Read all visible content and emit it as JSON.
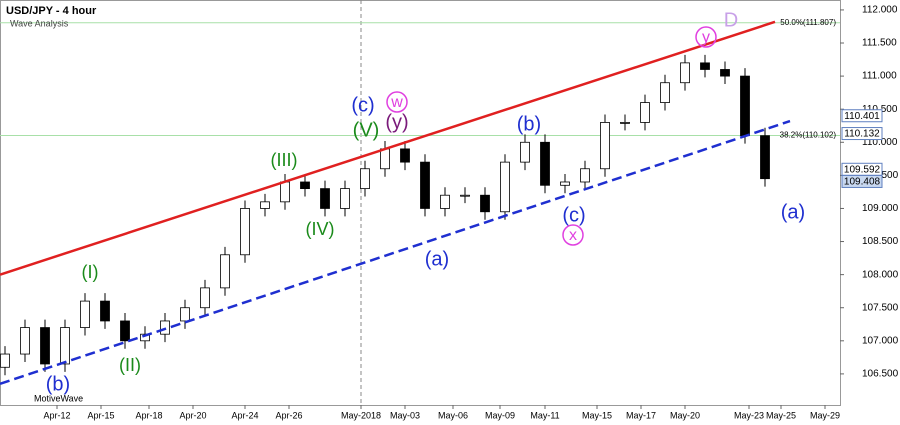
{
  "chart_data": {
    "type": "candlestick",
    "title": "USD/JPY - 4 hour",
    "subtitle": "Wave Analysis",
    "footer": "MotiveWave",
    "up_color": "#ffffff",
    "down_color": "#000000",
    "x": [
      0.5,
      2.5,
      4.5,
      6.5,
      8.5,
      10.5,
      12.5,
      14.5,
      16.5,
      18.5,
      20.5,
      22.5,
      24.5,
      26.5,
      28.5,
      30.5,
      32.5,
      34.5,
      36.5,
      38.5,
      40.5,
      42.5,
      44.5,
      46.5,
      48.5,
      50.5,
      52.5,
      54.5,
      56.5,
      58.5,
      60.5,
      62.5,
      64.5,
      66.5,
      68.5,
      70.5,
      72.5,
      74.5,
      76.5
    ],
    "open": [
      106.6,
      106.8,
      107.2,
      106.65,
      107.2,
      107.6,
      107.3,
      107.0,
      107.1,
      107.3,
      107.5,
      107.8,
      108.3,
      109.0,
      109.1,
      109.4,
      109.3,
      109.0,
      109.3,
      109.6,
      109.9,
      109.7,
      109.0,
      109.2,
      109.2,
      108.95,
      109.7,
      110.0,
      109.35,
      109.4,
      109.6,
      110.3,
      110.3,
      110.6,
      110.9,
      111.2,
      111.1,
      111.0,
      110.1
    ],
    "high": [
      106.92,
      107.32,
      107.32,
      107.32,
      107.72,
      107.72,
      107.42,
      107.22,
      107.42,
      107.62,
      107.92,
      108.42,
      109.12,
      109.22,
      109.52,
      109.52,
      109.42,
      109.42,
      109.72,
      110.02,
      110.02,
      109.82,
      109.32,
      109.32,
      109.32,
      109.82,
      110.12,
      110.12,
      109.52,
      109.72,
      110.42,
      110.42,
      110.72,
      111.02,
      111.32,
      111.32,
      111.22,
      111.12,
      110.22
    ],
    "low": [
      106.48,
      106.68,
      106.53,
      106.53,
      107.08,
      107.18,
      106.88,
      106.88,
      106.98,
      107.18,
      107.38,
      107.68,
      108.18,
      108.88,
      108.98,
      109.18,
      108.88,
      108.88,
      109.18,
      109.48,
      109.58,
      108.88,
      108.88,
      109.08,
      108.83,
      108.83,
      109.58,
      109.23,
      109.23,
      109.28,
      109.48,
      110.18,
      110.18,
      110.48,
      110.78,
      110.98,
      110.88,
      109.98,
      109.33
    ],
    "close": [
      106.8,
      107.2,
      106.65,
      107.2,
      107.6,
      107.3,
      107.0,
      107.1,
      107.3,
      107.5,
      107.8,
      108.3,
      109.0,
      109.1,
      109.4,
      109.3,
      109.0,
      109.3,
      109.6,
      109.9,
      109.7,
      109.0,
      109.2,
      109.2,
      108.95,
      109.7,
      110.0,
      109.35,
      109.4,
      109.6,
      110.3,
      110.3,
      110.6,
      110.9,
      111.2,
      111.1,
      111.0,
      110.1,
      109.45
    ],
    "xlim": [
      0,
      84
    ],
    "xticks": [
      {
        "value": 5.7,
        "label": "Apr-12"
      },
      {
        "value": 10.1,
        "label": "Apr-15"
      },
      {
        "value": 14.9,
        "label": "Apr-18"
      },
      {
        "value": 19.3,
        "label": "Apr-20"
      },
      {
        "value": 24.5,
        "label": "Apr-24"
      },
      {
        "value": 28.9,
        "label": "Apr-26"
      },
      {
        "value": 36.1,
        "label": "May-2018"
      },
      {
        "value": 40.5,
        "label": "May-03"
      },
      {
        "value": 45.3,
        "label": "May-06"
      },
      {
        "value": 50.0,
        "label": "May-09"
      },
      {
        "value": 54.5,
        "label": "May-11"
      },
      {
        "value": 59.7,
        "label": "May-15"
      },
      {
        "value": 64.1,
        "label": "May-17"
      },
      {
        "value": 68.5,
        "label": "May-20"
      },
      {
        "value": 74.9,
        "label": "May-23"
      },
      {
        "value": 78.1,
        "label": "May-25"
      },
      {
        "value": 82.5,
        "label": "May-29"
      }
    ],
    "ylim": [
      106.03,
      112.15
    ],
    "yticks": [
      {
        "value": 112.0,
        "label": "112.000"
      },
      {
        "value": 111.5,
        "label": "111.500"
      },
      {
        "value": 111.0,
        "label": "111.000"
      },
      {
        "value": 110.5,
        "label": "110.500"
      },
      {
        "value": 110.0,
        "label": "110.000"
      },
      {
        "value": 109.5,
        "label": "109.500"
      },
      {
        "value": 109.0,
        "label": "109.000"
      },
      {
        "value": 108.5,
        "label": "108.500"
      },
      {
        "value": 108.0,
        "label": "108.000"
      },
      {
        "value": 107.5,
        "label": "107.500"
      },
      {
        "value": 107.0,
        "label": "107.000"
      },
      {
        "value": 106.5,
        "label": "106.500"
      }
    ],
    "price_tags": [
      {
        "value": 110.401,
        "label": "110.401"
      },
      {
        "value": 110.132,
        "label": "110.132"
      },
      {
        "value": 109.592,
        "label": "109.592"
      },
      {
        "value": 109.408,
        "label": "109.408"
      }
    ],
    "fib_levels": [
      {
        "value": 111.807,
        "label": "50.0%(111.807)"
      },
      {
        "value": 110.102,
        "label": "38.2%(110.102)"
      }
    ],
    "trendlines": [
      {
        "color": "#e02020",
        "x": [
          0,
          77.5
        ],
        "y": [
          108.0,
          111.82
        ]
      },
      {
        "color": "#1f2fd0",
        "x": [
          0,
          79
        ],
        "y": [
          106.35,
          110.32
        ]
      }
    ],
    "wave_labels": [
      "(c)",
      "w",
      "(V)",
      "(y)",
      "(III)",
      "(IV)",
      "(I)",
      "(II)",
      "(b)",
      "(b)",
      "(a)",
      "(c)",
      "x",
      "y",
      "D",
      "(a)"
    ]
  }
}
